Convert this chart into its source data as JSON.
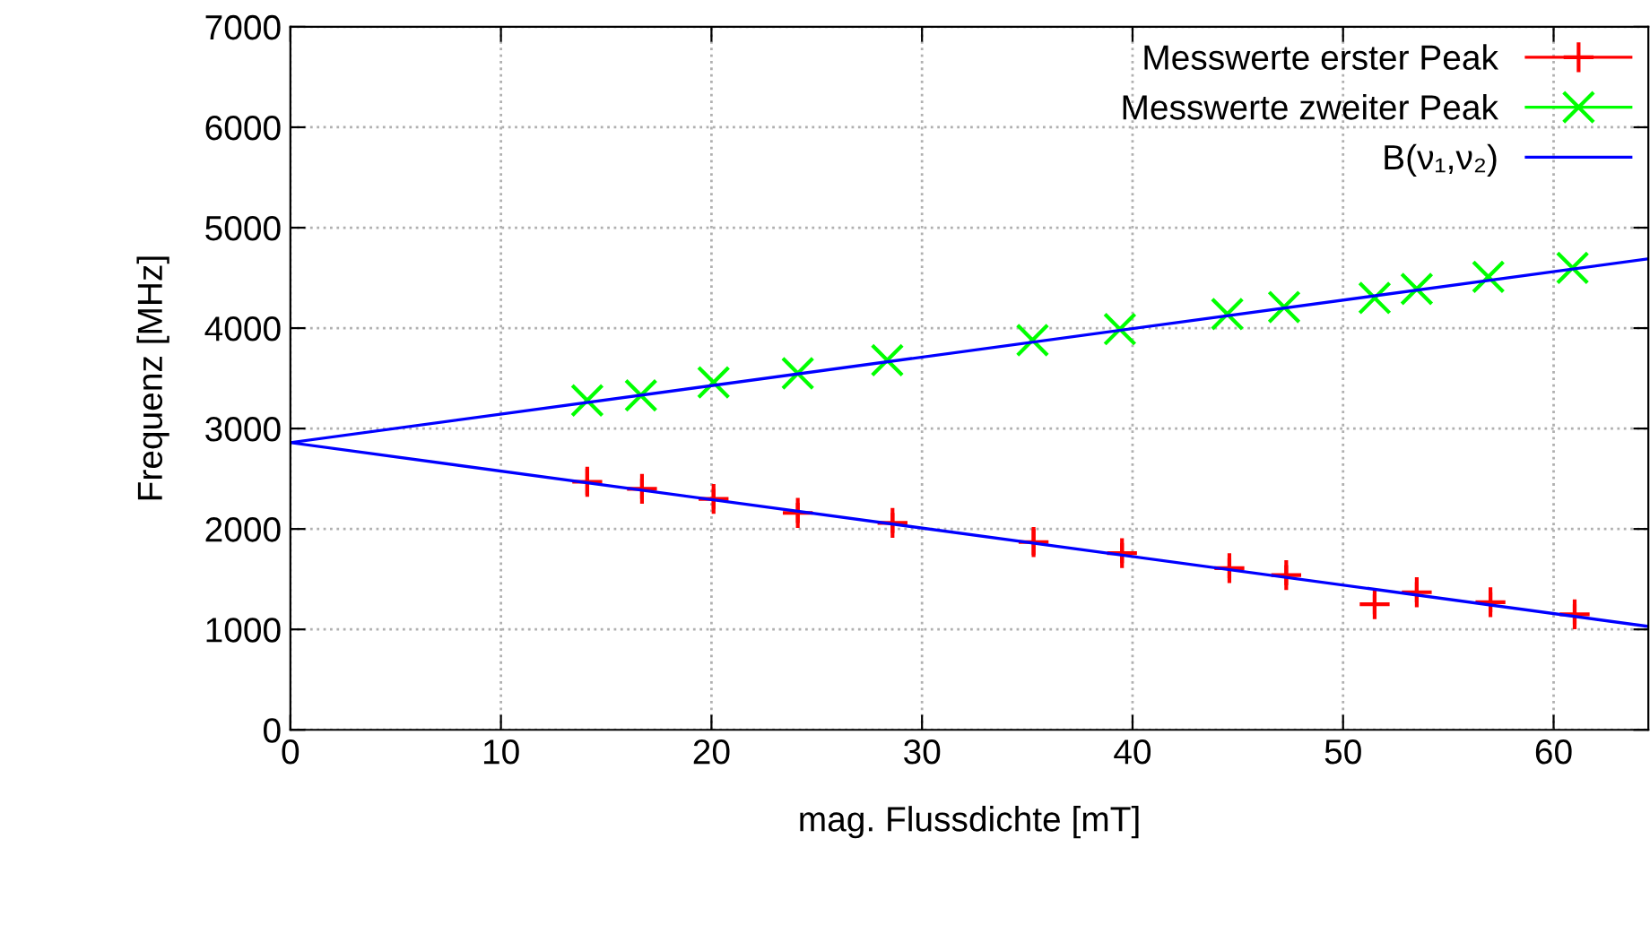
{
  "chart_data": {
    "type": "scatter",
    "xlabel": "mag. Flussdichte [mT]",
    "ylabel": "Frequenz [MHz]",
    "xlim": [
      0,
      64.5
    ],
    "xticks": [
      0,
      10,
      20,
      30,
      40,
      50,
      60
    ],
    "ylim": [
      0,
      7000
    ],
    "yticks": [
      0,
      1000,
      2000,
      3000,
      4000,
      5000,
      6000,
      7000
    ],
    "grid": true,
    "legend": "top right",
    "series": [
      {
        "name": "Messwerte erster Peak",
        "color": "#ff0000",
        "marker": "cross",
        "x": [
          14.1,
          16.7,
          20.1,
          24.1,
          28.6,
          35.3,
          39.5,
          44.6,
          47.3,
          51.5,
          53.5,
          57.0,
          61.0
        ],
        "values": [
          2470,
          2400,
          2300,
          2160,
          2060,
          1870,
          1760,
          1610,
          1540,
          1250,
          1370,
          1270,
          1150
        ],
        "errors": [
          130,
          100,
          100,
          100,
          100,
          130,
          100,
          100,
          100,
          100,
          100,
          100,
          100
        ]
      },
      {
        "name": "Messwerte zweiter Peak",
        "color": "#00ff00",
        "marker": "x",
        "x": [
          14.1,
          16.65,
          20.1,
          24.1,
          28.35,
          35.25,
          39.4,
          44.5,
          47.2,
          51.5,
          53.5,
          56.9,
          60.9
        ],
        "values": [
          3280,
          3330,
          3460,
          3550,
          3680,
          3880,
          3990,
          4140,
          4210,
          4300,
          4390,
          4510,
          4600
        ]
      },
      {
        "name": "B(ν₁,ν₂)",
        "color": "#0000ff",
        "type": "line",
        "x": [
          0,
          64.5
        ],
        "values": [
          2860,
          4690
        ]
      },
      {
        "color": "#0000ff",
        "type": "line",
        "x": [
          0,
          64.5
        ],
        "values": [
          2860,
          1030
        ]
      }
    ]
  }
}
